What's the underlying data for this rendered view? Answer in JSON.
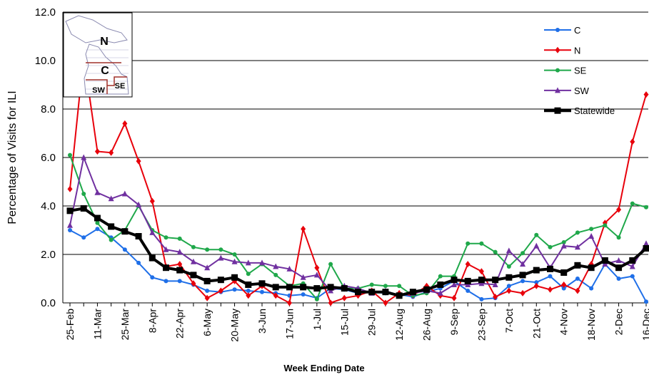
{
  "chart_data": {
    "type": "line",
    "y_label": "Percentage of Visits for ILI",
    "x_label": "Week Ending Date",
    "categories": [
      "25-Feb",
      null,
      "11-Mar",
      null,
      "25-Mar",
      null,
      "8-Apr",
      null,
      "22-Apr",
      null,
      "6-May",
      null,
      "20-May",
      null,
      "3-Jun",
      null,
      "17-Jun",
      null,
      "1-Jul",
      null,
      "15-Jul",
      null,
      "29-Jul",
      null,
      "12-Aug",
      null,
      "26-Aug",
      null,
      "9-Sep",
      null,
      "23-Sep",
      null,
      "7-Oct",
      null,
      "21-Oct",
      null,
      "4-Nov",
      null,
      "18-Nov",
      null,
      "2-Dec",
      null,
      "16-Dec"
    ],
    "ylim": [
      0,
      12
    ],
    "yticks": [
      {
        "value": 0,
        "label": "0.0"
      },
      {
        "value": 2,
        "label": "2.0"
      },
      {
        "value": 4,
        "label": "4.0"
      },
      {
        "value": 6,
        "label": "6.0"
      },
      {
        "value": 8,
        "label": "8.0"
      },
      {
        "value": 10,
        "label": "10.0"
      },
      {
        "value": 12,
        "label": "12.0"
      }
    ],
    "grid": true,
    "legend": "upper right",
    "series": [
      {
        "name": "C",
        "color": "#1f6fe8",
        "marker": "circle",
        "values": [
          3.0,
          2.7,
          3.05,
          2.7,
          2.2,
          1.65,
          1.05,
          0.9,
          0.9,
          0.75,
          0.5,
          0.45,
          0.55,
          0.5,
          0.45,
          0.4,
          0.3,
          0.35,
          0.2,
          0.6,
          0.55,
          0.4,
          0.45,
          0.4,
          0.35,
          0.25,
          0.45,
          0.6,
          0.9,
          0.5,
          0.15,
          0.2,
          0.7,
          0.9,
          0.85,
          1.1,
          0.6,
          1.0,
          0.6,
          1.6,
          1.0,
          1.1,
          0.05
        ]
      },
      {
        "name": "N",
        "color": "#e8000b",
        "marker": "diamond",
        "values": [
          4.7,
          10.2,
          6.25,
          6.2,
          7.4,
          5.85,
          4.2,
          1.5,
          1.6,
          0.8,
          0.2,
          0.5,
          0.9,
          0.3,
          0.7,
          0.3,
          0.0,
          3.05,
          1.45,
          0.0,
          0.2,
          0.3,
          0.5,
          0.0,
          0.4,
          0.3,
          0.7,
          0.3,
          0.2,
          1.6,
          1.3,
          0.25,
          0.5,
          0.4,
          0.7,
          0.55,
          0.75,
          0.5,
          1.6,
          3.3,
          3.85,
          6.65,
          8.6
        ]
      },
      {
        "name": "SE",
        "color": "#1fa84a",
        "marker": "circle",
        "values": [
          6.1,
          4.5,
          3.3,
          2.6,
          3.0,
          4.0,
          3.0,
          2.7,
          2.65,
          2.3,
          2.2,
          2.2,
          2.0,
          1.2,
          1.6,
          1.15,
          0.7,
          0.8,
          0.15,
          1.6,
          0.6,
          0.6,
          0.75,
          0.7,
          0.7,
          0.3,
          0.4,
          1.1,
          1.1,
          2.45,
          2.45,
          2.1,
          1.5,
          2.05,
          2.8,
          2.3,
          2.5,
          2.9,
          3.05,
          3.2,
          2.7,
          4.1,
          3.95
        ]
      },
      {
        "name": "SW",
        "color": "#7030a0",
        "marker": "triangle",
        "values": [
          3.2,
          6.0,
          4.55,
          4.3,
          4.5,
          4.05,
          2.9,
          2.2,
          2.1,
          1.7,
          1.45,
          1.85,
          1.7,
          1.65,
          1.65,
          1.5,
          1.4,
          1.05,
          1.15,
          0.5,
          0.7,
          0.6,
          0.4,
          0.5,
          0.3,
          0.4,
          0.5,
          0.4,
          0.75,
          0.75,
          0.8,
          0.75,
          2.15,
          1.6,
          2.35,
          1.45,
          2.35,
          2.3,
          2.75,
          1.6,
          1.75,
          1.5,
          2.45
        ]
      },
      {
        "name": "Statewide",
        "color": "#000000",
        "marker": "square",
        "values": [
          3.8,
          3.9,
          3.5,
          3.15,
          2.95,
          2.75,
          1.85,
          1.45,
          1.35,
          1.15,
          0.9,
          0.95,
          1.05,
          0.75,
          0.8,
          0.65,
          0.65,
          0.65,
          0.6,
          0.65,
          0.6,
          0.45,
          0.45,
          0.45,
          0.3,
          0.45,
          0.55,
          0.75,
          0.95,
          0.9,
          0.95,
          0.95,
          1.05,
          1.15,
          1.35,
          1.4,
          1.25,
          1.55,
          1.45,
          1.75,
          1.45,
          1.75,
          2.25
        ]
      }
    ]
  },
  "map_labels": [
    "N",
    "C",
    "SW",
    "SE"
  ]
}
